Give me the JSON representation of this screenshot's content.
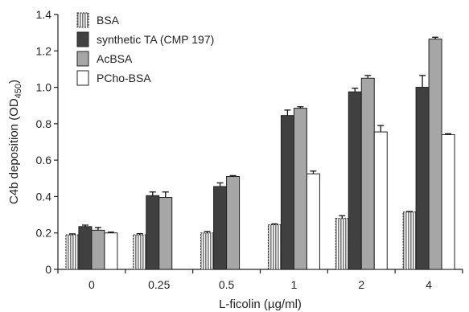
{
  "chart_data": {
    "type": "bar",
    "title": "",
    "xlabel": "L-ficolin (µg/ml)",
    "ylabel_main": "C4b deposition (OD",
    "ylabel_sub": "450",
    "ylabel_close": ")",
    "ylim": [
      0,
      1.4
    ],
    "yticks": [
      0,
      0.2,
      0.4,
      0.6,
      0.8,
      1.0,
      1.2,
      1.4
    ],
    "ytick_labels": [
      "0",
      "0.2",
      "0.4",
      "0.6",
      "0.8",
      "1.0",
      "1.2",
      "1.4"
    ],
    "grid": false,
    "legend_position": "top-left",
    "categories": [
      "0",
      "0.25",
      "0.5",
      "1",
      "2",
      "4"
    ],
    "series": [
      {
        "name": "BSA",
        "fill": "#cfcfcf",
        "pattern": "vertical-stripes",
        "values": [
          0.19,
          0.19,
          0.2,
          0.245,
          0.28,
          0.315
        ],
        "errors": [
          0.005,
          0.006,
          0.008,
          0.005,
          0.015,
          0.003
        ]
      },
      {
        "name": "synthetic TA (CMP 197)",
        "fill": "#404040",
        "pattern": "solid",
        "values": [
          0.235,
          0.405,
          0.455,
          0.845,
          0.975,
          1.0
        ],
        "errors": [
          0.008,
          0.02,
          0.02,
          0.03,
          0.02,
          0.065
        ]
      },
      {
        "name": "AcBSA",
        "fill": "#a6a6a6",
        "pattern": "solid",
        "values": [
          0.215,
          0.395,
          0.51,
          0.885,
          1.05,
          1.265
        ],
        "errors": [
          0.015,
          0.03,
          0.005,
          0.008,
          0.015,
          0.01
        ]
      },
      {
        "name": "PCho-BSA",
        "fill": "#ffffff",
        "pattern": "solid",
        "values": [
          0.2,
          null,
          null,
          0.525,
          0.755,
          0.74
        ],
        "errors": [
          0.005,
          null,
          null,
          0.015,
          0.035,
          0.005
        ]
      }
    ]
  }
}
